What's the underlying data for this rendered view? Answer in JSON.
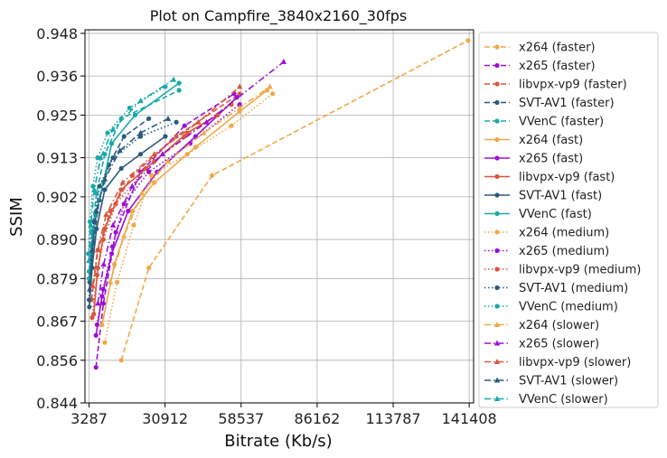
{
  "chart_data": {
    "type": "line",
    "title": "Plot on Campfire_3840x2160_30fps",
    "xlabel": "Bitrate (Kb/s)",
    "ylabel": "SSIM",
    "xlim": [
      1800,
      143000
    ],
    "ylim": [
      0.844,
      0.949
    ],
    "xticks": [
      3287,
      30912,
      58537,
      86162,
      113787,
      141408
    ],
    "xtick_labels": [
      "3287",
      "30912",
      "58537",
      "86162",
      "113787",
      "141408"
    ],
    "yticks": [
      0.844,
      0.856,
      0.867,
      0.879,
      0.89,
      0.902,
      0.913,
      0.925,
      0.936,
      0.948
    ],
    "ytick_labels": [
      "0.844",
      "0.856",
      "0.867",
      "0.879",
      "0.890",
      "0.902",
      "0.913",
      "0.925",
      "0.936",
      "0.948"
    ],
    "grid": true,
    "legend_position": "outside-right",
    "series": [
      {
        "name": "x264 (faster)",
        "color": "#f0a848",
        "dash": "dashed",
        "marker": "circle",
        "points": [
          [
            15000,
            0.856
          ],
          [
            25000,
            0.882
          ],
          [
            48000,
            0.908
          ],
          [
            141000,
            0.946
          ]
        ]
      },
      {
        "name": "x265 (faster)",
        "color": "#9b10d8",
        "dash": "dashed",
        "marker": "circle",
        "points": [
          [
            5800,
            0.854
          ],
          [
            8500,
            0.872
          ],
          [
            13000,
            0.892
          ],
          [
            22000,
            0.909
          ],
          [
            38000,
            0.922
          ],
          [
            56000,
            0.931
          ]
        ]
      },
      {
        "name": "libvpx-vp9 (faster)",
        "color": "#d9573e",
        "dash": "dashed",
        "marker": "circle",
        "points": [
          [
            4200,
            0.873
          ],
          [
            6500,
            0.887
          ],
          [
            11000,
            0.898
          ],
          [
            19000,
            0.908
          ],
          [
            35000,
            0.919
          ],
          [
            58000,
            0.931
          ]
        ]
      },
      {
        "name": "SVT-AV1 (faster)",
        "color": "#2a5a7c",
        "dash": "dashed",
        "marker": "circle",
        "points": [
          [
            3500,
            0.878
          ],
          [
            4800,
            0.889
          ],
          [
            7000,
            0.901
          ],
          [
            10500,
            0.911
          ],
          [
            16000,
            0.919
          ],
          [
            25000,
            0.924
          ]
        ]
      },
      {
        "name": "VVenC (faster)",
        "color": "#1aa8a8",
        "dash": "dashed",
        "marker": "circle",
        "points": [
          [
            3300,
            0.881
          ],
          [
            4300,
            0.892
          ],
          [
            6000,
            0.903
          ],
          [
            9000,
            0.914
          ],
          [
            15000,
            0.924
          ],
          [
            36000,
            0.932
          ]
        ]
      },
      {
        "name": "x264 (fast)",
        "color": "#f0a848",
        "dash": "solid",
        "marker": "circle",
        "points": [
          [
            8000,
            0.866
          ],
          [
            12500,
            0.883
          ],
          [
            19000,
            0.898
          ],
          [
            27000,
            0.906
          ],
          [
            42000,
            0.916
          ],
          [
            58000,
            0.926
          ],
          [
            68000,
            0.932
          ]
        ]
      },
      {
        "name": "x265 (fast)",
        "color": "#9b10d8",
        "dash": "solid",
        "marker": "circle",
        "points": [
          [
            5800,
            0.863
          ],
          [
            8000,
            0.874
          ],
          [
            11500,
            0.886
          ],
          [
            17500,
            0.898
          ],
          [
            28000,
            0.909
          ],
          [
            42000,
            0.919
          ],
          [
            57000,
            0.93
          ]
        ]
      },
      {
        "name": "libvpx-vp9 (fast)",
        "color": "#d9573e",
        "dash": "solid",
        "marker": "circle",
        "points": [
          [
            5000,
            0.869
          ],
          [
            6500,
            0.882
          ],
          [
            9000,
            0.893
          ],
          [
            15000,
            0.904
          ],
          [
            27000,
            0.912
          ],
          [
            39000,
            0.92
          ],
          [
            50000,
            0.925
          ]
        ]
      },
      {
        "name": "SVT-AV1 (fast)",
        "color": "#2a5a7c",
        "dash": "solid",
        "marker": "circle",
        "points": [
          [
            3400,
            0.871
          ],
          [
            4400,
            0.882
          ],
          [
            6000,
            0.893
          ],
          [
            9000,
            0.904
          ],
          [
            15000,
            0.91
          ],
          [
            22000,
            0.914
          ],
          [
            31000,
            0.919
          ]
        ]
      },
      {
        "name": "VVenC (fast)",
        "color": "#1aa8a8",
        "dash": "solid",
        "marker": "circle",
        "points": [
          [
            3300,
            0.879
          ],
          [
            4100,
            0.888
          ],
          [
            5600,
            0.897
          ],
          [
            8500,
            0.906
          ],
          [
            11500,
            0.917
          ],
          [
            20000,
            0.925
          ],
          [
            36000,
            0.934
          ]
        ]
      },
      {
        "name": "x264 (medium)",
        "color": "#f0a848",
        "dash": "dotted",
        "marker": "circle",
        "points": [
          [
            9000,
            0.861
          ],
          [
            13500,
            0.878
          ],
          [
            19500,
            0.894
          ],
          [
            26000,
            0.908
          ],
          [
            39000,
            0.914
          ],
          [
            55000,
            0.922
          ],
          [
            70000,
            0.931
          ]
        ]
      },
      {
        "name": "x265 (medium)",
        "color": "#9b10d8",
        "dash": "dotted",
        "marker": "circle",
        "points": [
          [
            6200,
            0.866
          ],
          [
            8400,
            0.876
          ],
          [
            11800,
            0.888
          ],
          [
            16000,
            0.9
          ],
          [
            25000,
            0.909
          ],
          [
            40000,
            0.917
          ],
          [
            58000,
            0.928
          ]
        ]
      },
      {
        "name": "libvpx-vp9 (medium)",
        "color": "#d9573e",
        "dash": "dotted",
        "marker": "circle",
        "points": [
          [
            4400,
            0.868
          ],
          [
            6200,
            0.88
          ],
          [
            8500,
            0.89
          ],
          [
            13000,
            0.9
          ],
          [
            24000,
            0.91
          ],
          [
            38000,
            0.919
          ],
          [
            55000,
            0.928
          ]
        ]
      },
      {
        "name": "SVT-AV1 (medium)",
        "color": "#2a5a7c",
        "dash": "dotted",
        "marker": "circle",
        "points": [
          [
            3300,
            0.873
          ],
          [
            3900,
            0.884
          ],
          [
            5000,
            0.895
          ],
          [
            7100,
            0.905
          ],
          [
            12000,
            0.913
          ],
          [
            22000,
            0.919
          ],
          [
            35000,
            0.923
          ]
        ]
      },
      {
        "name": "VVenC (medium)",
        "color": "#1aa8a8",
        "dash": "dotted",
        "marker": "circle",
        "points": [
          [
            3000,
            0.886
          ],
          [
            3600,
            0.895
          ],
          [
            4700,
            0.905
          ],
          [
            6400,
            0.913
          ],
          [
            10000,
            0.92
          ],
          [
            18000,
            0.927
          ],
          [
            31000,
            0.933
          ]
        ]
      },
      {
        "name": "x264 (slower)",
        "color": "#f0a848",
        "dash": "dashdot",
        "marker": "triangle",
        "points": [
          [
            11000,
            0.878
          ],
          [
            16000,
            0.891
          ],
          [
            22500,
            0.903
          ],
          [
            32000,
            0.912
          ],
          [
            45000,
            0.92
          ],
          [
            58000,
            0.927
          ],
          [
            69000,
            0.933
          ]
        ]
      },
      {
        "name": "x265 (slower)",
        "color": "#9b10d8",
        "dash": "dashdot",
        "marker": "triangle",
        "points": [
          [
            6500,
            0.872
          ],
          [
            8600,
            0.883
          ],
          [
            12000,
            0.894
          ],
          [
            19000,
            0.905
          ],
          [
            30000,
            0.914
          ],
          [
            46000,
            0.923
          ],
          [
            74000,
            0.94
          ]
        ]
      },
      {
        "name": "libvpx-vp9 (slower)",
        "color": "#d9573e",
        "dash": "dashdot",
        "marker": "triangle",
        "points": [
          [
            4600,
            0.877
          ],
          [
            6400,
            0.887
          ],
          [
            9500,
            0.897
          ],
          [
            15500,
            0.906
          ],
          [
            27000,
            0.914
          ],
          [
            43000,
            0.923
          ],
          [
            58000,
            0.933
          ]
        ]
      },
      {
        "name": "SVT-AV1 (slower)",
        "color": "#2a5a7c",
        "dash": "dashdot",
        "marker": "triangle",
        "points": [
          [
            3500,
            0.876
          ],
          [
            4400,
            0.887
          ],
          [
            6000,
            0.898
          ],
          [
            9000,
            0.907
          ],
          [
            14500,
            0.915
          ],
          [
            22000,
            0.92
          ],
          [
            32000,
            0.924
          ]
        ]
      },
      {
        "name": "VVenC (slower)",
        "color": "#1aa8a8",
        "dash": "dashdot",
        "marker": "triangle",
        "points": [
          [
            3200,
            0.884
          ],
          [
            3900,
            0.894
          ],
          [
            5200,
            0.904
          ],
          [
            7500,
            0.913
          ],
          [
            12000,
            0.921
          ],
          [
            22000,
            0.929
          ],
          [
            34000,
            0.935
          ]
        ]
      }
    ]
  }
}
